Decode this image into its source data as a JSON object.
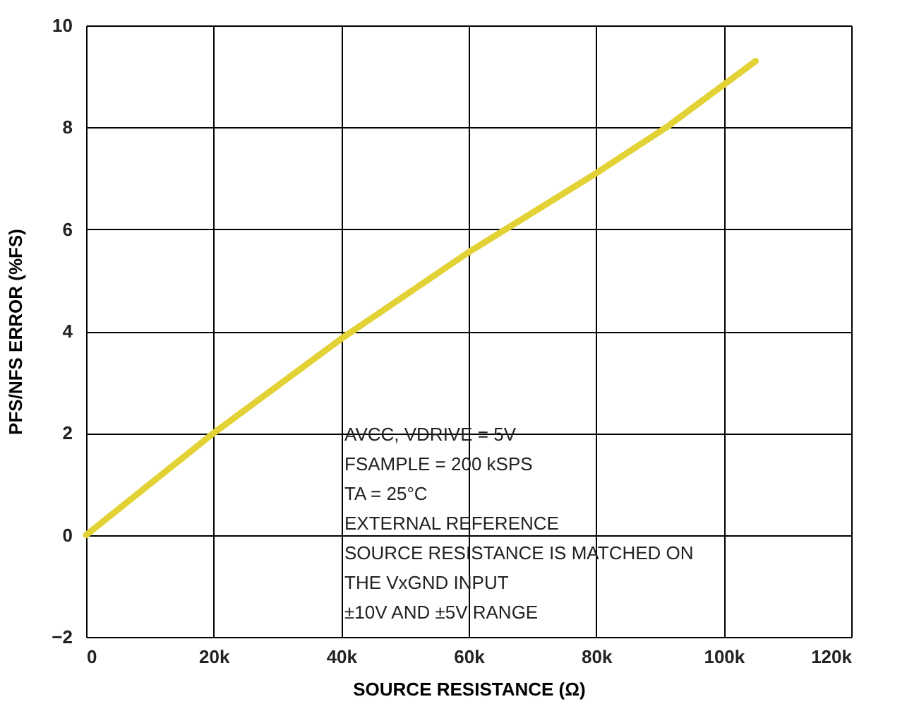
{
  "chart_data": {
    "type": "line",
    "xlabel": "SOURCE RESISTANCE (Ω)",
    "ylabel": "PFS/NFS ERROR (%FS)",
    "x": [
      0,
      20000,
      40000,
      60000,
      80000,
      91000,
      105000
    ],
    "series": [
      {
        "color": "#e3d235",
        "values": [
          0,
          2.0,
          3.85,
          5.55,
          7.1,
          8.0,
          9.3
        ]
      }
    ],
    "xlim": [
      0,
      120000
    ],
    "xticks": [
      {
        "value": 0,
        "label": "0"
      },
      {
        "value": 20000,
        "label": "20k"
      },
      {
        "value": 40000,
        "label": "40k"
      },
      {
        "value": 60000,
        "label": "60k"
      },
      {
        "value": 80000,
        "label": "80k"
      },
      {
        "value": 100000,
        "label": "100k"
      },
      {
        "value": 120000,
        "label": "120k"
      }
    ],
    "ylim": [
      -2,
      10
    ],
    "yticks": [
      -2,
      0,
      2,
      4,
      6,
      8,
      10
    ],
    "grid": true,
    "marker": "none",
    "line_style": "solid",
    "annotations": [
      "AVCC, VDRIVE = 5V",
      "FSAMPLE = 200 kSPS",
      "TA = 25°C",
      "EXTERNAL REFERENCE",
      "SOURCE RESISTANCE IS MATCHED ON",
      "THE VxGND INPUT",
      "±10V AND ±5V RANGE"
    ]
  }
}
